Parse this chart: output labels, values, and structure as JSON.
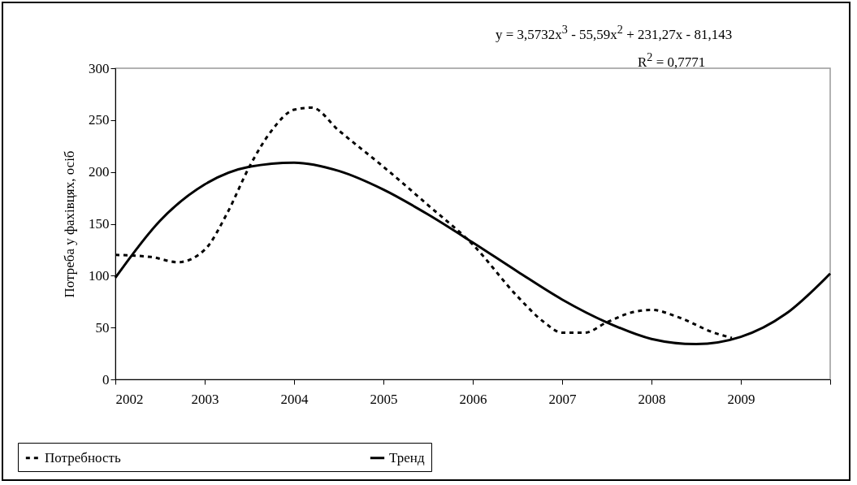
{
  "chart_data": {
    "type": "line",
    "ylabel": "Потреба у фахівцях, осіб",
    "annotations": [
      "y = 3,5732x$^{3}$ - 55,59x$^{2}$ + 231,27x - 81,143",
      "R$^{2}$ = 0,7771"
    ],
    "xlim": [
      2002,
      2010
    ],
    "xticks": [
      2002,
      2003,
      2004,
      2005,
      2006,
      2007,
      2008,
      2009,
      {
        "value": 2010,
        "label": null
      }
    ],
    "ylim": [
      0,
      300
    ],
    "yticks": [
      0,
      50,
      100,
      150,
      200,
      250,
      300
    ],
    "grid": false,
    "legend": "bottom",
    "marker": "none",
    "series": [
      {
        "name": "Потребность",
        "color": "#000000",
        "line_style": "dashed",
        "x": [
          2002,
          2002.4,
          2002.7,
          2003,
          2003.25,
          2003.5,
          2003.75,
          2004,
          2004.2,
          2004.5,
          2005,
          2005.5,
          2006,
          2006.5,
          2006.8,
          2007,
          2007.25,
          2007.5,
          2007.8,
          2008,
          2008.3,
          2008.7,
          2008.9
        ],
        "values": [
          120,
          118,
          113,
          125,
          160,
          205,
          240,
          260,
          262,
          240,
          205,
          168,
          130,
          80,
          55,
          45,
          45,
          55,
          65,
          67,
          60,
          45,
          40
        ]
      },
      {
        "name": "Тренд",
        "color": "#000000",
        "line_style": "solid",
        "x": [
          2002,
          2002.5,
          2003,
          2003.5,
          2004,
          2004.5,
          2005,
          2005.5,
          2006,
          2006.5,
          2007,
          2007.5,
          2008,
          2008.5,
          2009,
          2009.5,
          2010
        ],
        "values": [
          98,
          153,
          188,
          205,
          209,
          201,
          183,
          159,
          132,
          104,
          77,
          55,
          39,
          34,
          41,
          63,
          102
        ]
      }
    ]
  }
}
